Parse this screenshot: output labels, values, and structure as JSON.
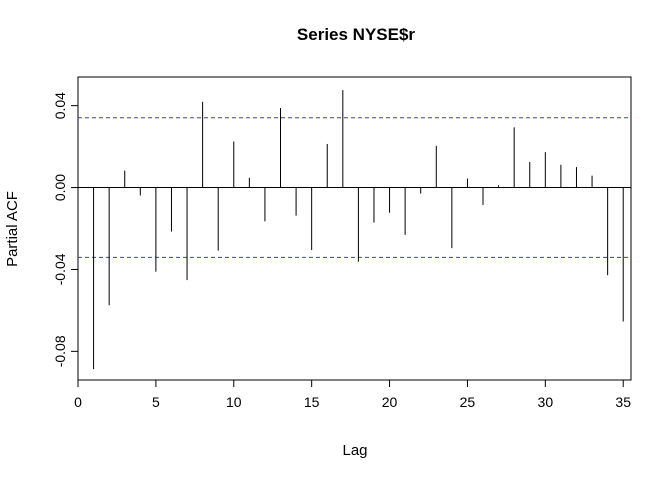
{
  "chart_data": {
    "type": "bar",
    "title": "Series  NYSE$r",
    "xlabel": "Lag",
    "ylabel": "Partial ACF",
    "xlim": [
      0,
      35.5
    ],
    "ylim": [
      -0.094,
      0.054
    ],
    "x_ticks": [
      0,
      5,
      10,
      15,
      20,
      25,
      30,
      35
    ],
    "x_tick_labels": [
      "0",
      "5",
      "10",
      "15",
      "20",
      "25",
      "30",
      "35"
    ],
    "y_ticks": [
      -0.08,
      -0.04,
      0.0,
      0.04
    ],
    "y_tick_labels": [
      "-0.08",
      "-0.04",
      "0.00",
      "0.04"
    ],
    "lags": [
      1,
      2,
      3,
      4,
      5,
      6,
      7,
      8,
      9,
      10,
      11,
      12,
      13,
      14,
      15,
      16,
      17,
      18,
      19,
      20,
      21,
      22,
      23,
      24,
      25,
      26,
      27,
      28,
      29,
      30,
      31,
      32,
      33,
      34,
      35
    ],
    "values": [
      -0.0887,
      -0.0575,
      0.0083,
      -0.0039,
      -0.0411,
      -0.0215,
      -0.0452,
      0.0419,
      -0.0308,
      0.0225,
      0.0048,
      -0.0165,
      0.0388,
      -0.0137,
      -0.0305,
      0.0213,
      0.0476,
      -0.0362,
      -0.0171,
      -0.0123,
      -0.0231,
      -0.0029,
      0.0204,
      -0.0296,
      0.0044,
      -0.0085,
      0.0011,
      0.0294,
      0.0125,
      0.0173,
      0.0111,
      0.01,
      0.0058,
      -0.0428,
      -0.0654
    ],
    "confidence_bound": 0.0341,
    "confidence_color": "#3b3bd8",
    "grid": false,
    "legend": "none"
  }
}
